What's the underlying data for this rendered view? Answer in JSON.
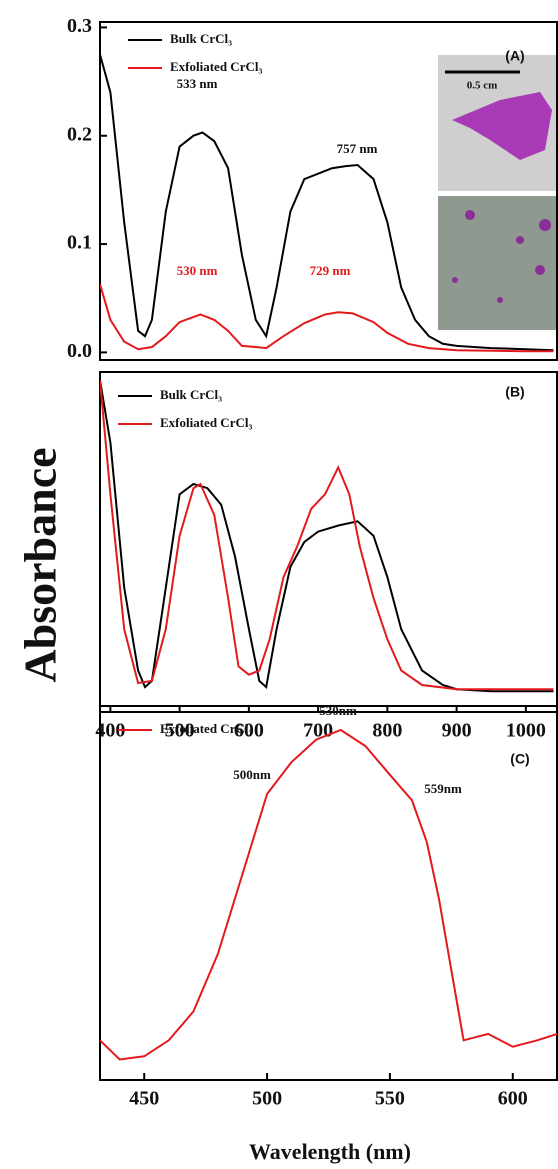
{
  "axis_labels": {
    "y": "Absorbance",
    "x": "Wavelength (nm)"
  },
  "chart_data": [
    {
      "type": "line",
      "panel": "(A)",
      "xlim": [
        385,
        1045
      ],
      "ylim": [
        -0.007,
        0.305
      ],
      "yticks": [
        {
          "value": 0,
          "label": "0.0"
        },
        0.1,
        0.2,
        0.3
      ],
      "annotations": [
        {
          "text": "533 nm",
          "color": "#111111"
        },
        {
          "text": "757 nm",
          "color": "#111111"
        },
        {
          "text": "530 nm",
          "color": "#e31a1c"
        },
        {
          "text": "729 nm",
          "color": "#e31a1c"
        }
      ],
      "inset_label": "0.5 cm",
      "series": [
        {
          "name": "Bulk CrCl₃",
          "color": "#000000",
          "x": [
            385,
            400,
            420,
            440,
            450,
            460,
            480,
            500,
            520,
            533,
            550,
            570,
            590,
            610,
            625,
            640,
            660,
            680,
            700,
            720,
            740,
            757,
            780,
            800,
            820,
            840,
            860,
            880,
            900,
            950,
            1000,
            1040
          ],
          "values": [
            0.275,
            0.24,
            0.12,
            0.02,
            0.015,
            0.03,
            0.13,
            0.19,
            0.2,
            0.203,
            0.195,
            0.17,
            0.09,
            0.03,
            0.015,
            0.06,
            0.13,
            0.16,
            0.165,
            0.17,
            0.172,
            0.173,
            0.16,
            0.12,
            0.06,
            0.03,
            0.015,
            0.008,
            0.006,
            0.004,
            0.003,
            0.002
          ]
        },
        {
          "name": "Exfoliated CrCl₃",
          "color": "#e31a1c",
          "x": [
            385,
            400,
            420,
            440,
            460,
            480,
            500,
            530,
            550,
            570,
            590,
            610,
            625,
            650,
            680,
            710,
            729,
            750,
            780,
            800,
            830,
            860,
            900,
            1000,
            1040
          ],
          "values": [
            0.063,
            0.03,
            0.01,
            0.003,
            0.005,
            0.015,
            0.028,
            0.035,
            0.03,
            0.02,
            0.006,
            0.005,
            0.004,
            0.015,
            0.027,
            0.035,
            0.037,
            0.036,
            0.028,
            0.018,
            0.008,
            0.004,
            0.002,
            0.001,
            0.001
          ]
        }
      ]
    },
    {
      "type": "line",
      "panel": "(B)",
      "xlim": [
        385,
        1045
      ],
      "ylim": [
        -0.1,
        1.54
      ],
      "xticks": [
        400,
        500,
        600,
        700,
        800,
        900,
        1000
      ],
      "series": [
        {
          "name": "Bulk CrCl₃",
          "color": "#000000",
          "x": [
            385,
            400,
            420,
            440,
            450,
            460,
            480,
            500,
            520,
            540,
            560,
            580,
            600,
            615,
            625,
            640,
            660,
            680,
            700,
            730,
            757,
            780,
            800,
            820,
            850,
            880,
            900,
            950,
            1000,
            1040
          ],
          "values": [
            1.5,
            1.2,
            0.5,
            0.1,
            0.02,
            0.05,
            0.5,
            0.95,
            1.0,
            0.98,
            0.9,
            0.65,
            0.3,
            0.05,
            0.02,
            0.3,
            0.6,
            0.72,
            0.77,
            0.8,
            0.82,
            0.75,
            0.55,
            0.3,
            0.1,
            0.03,
            0.01,
            0,
            0,
            0
          ]
        },
        {
          "name": "Exfoliated CrCl₃",
          "color": "#e31a1c",
          "x": [
            385,
            400,
            420,
            440,
            460,
            480,
            500,
            520,
            530,
            550,
            570,
            585,
            600,
            615,
            630,
            650,
            670,
            690,
            710,
            729,
            745,
            760,
            780,
            800,
            820,
            850,
            900,
            950,
            1000,
            1040
          ],
          "values": [
            1.5,
            0.95,
            0.3,
            0.04,
            0.05,
            0.3,
            0.75,
            0.98,
            1.0,
            0.85,
            0.45,
            0.12,
            0.08,
            0.1,
            0.25,
            0.55,
            0.7,
            0.88,
            0.95,
            1.08,
            0.95,
            0.7,
            0.45,
            0.25,
            0.1,
            0.03,
            0.01,
            0.01,
            0.01,
            0.01
          ]
        }
      ]
    },
    {
      "type": "line",
      "panel": "(C)",
      "xlim": [
        432,
        618
      ],
      "ylim": [
        -0.094,
        1.075
      ],
      "xticks": [
        450,
        500,
        550,
        600
      ],
      "annotations": [
        {
          "text": "530nm",
          "color": "#111111"
        },
        {
          "text": "500nm",
          "color": "#111111"
        },
        {
          "text": "559nm",
          "color": "#111111"
        }
      ],
      "series": [
        {
          "name": "Exfoliated CrCl₃",
          "color": "#e31a1c",
          "x": [
            432,
            440,
            450,
            460,
            470,
            480,
            490,
            500,
            510,
            520,
            530,
            540,
            550,
            559,
            565,
            570,
            575,
            580,
            590,
            600,
            610,
            618
          ],
          "values": [
            0.03,
            -0.03,
            -0.02,
            0.03,
            0.12,
            0.3,
            0.55,
            0.8,
            0.9,
            0.97,
            1.0,
            0.95,
            0.86,
            0.78,
            0.65,
            0.47,
            0.25,
            0.03,
            0.05,
            0.01,
            0.03,
            0.05
          ]
        }
      ]
    }
  ]
}
